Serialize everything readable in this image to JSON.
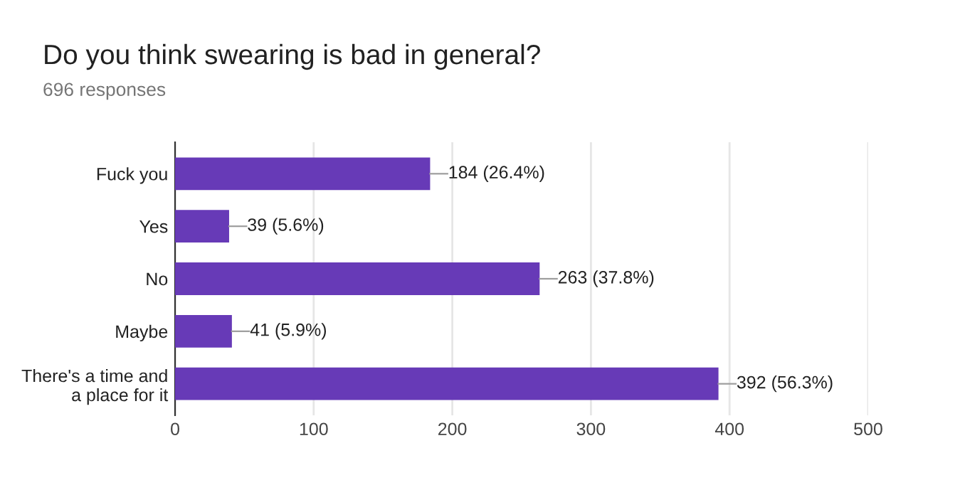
{
  "chart_data": {
    "type": "bar",
    "orientation": "horizontal",
    "title": "Do you think swearing is bad in general?",
    "subtitle": "696 responses",
    "categories": [
      "Fuck you",
      "Yes",
      "No",
      "Maybe",
      "There's a time and\na place for it"
    ],
    "values": [
      184,
      39,
      263,
      41,
      392
    ],
    "value_labels": [
      "184 (26.4%)",
      "39 (5.6%)",
      "263 (37.8%)",
      "41 (5.9%)",
      "392 (56.3%)"
    ],
    "color": "#673ab7",
    "xlim": [
      0,
      500
    ],
    "xticks": [
      0,
      100,
      200,
      300,
      400,
      500
    ],
    "grid": "x",
    "legend": false
  }
}
